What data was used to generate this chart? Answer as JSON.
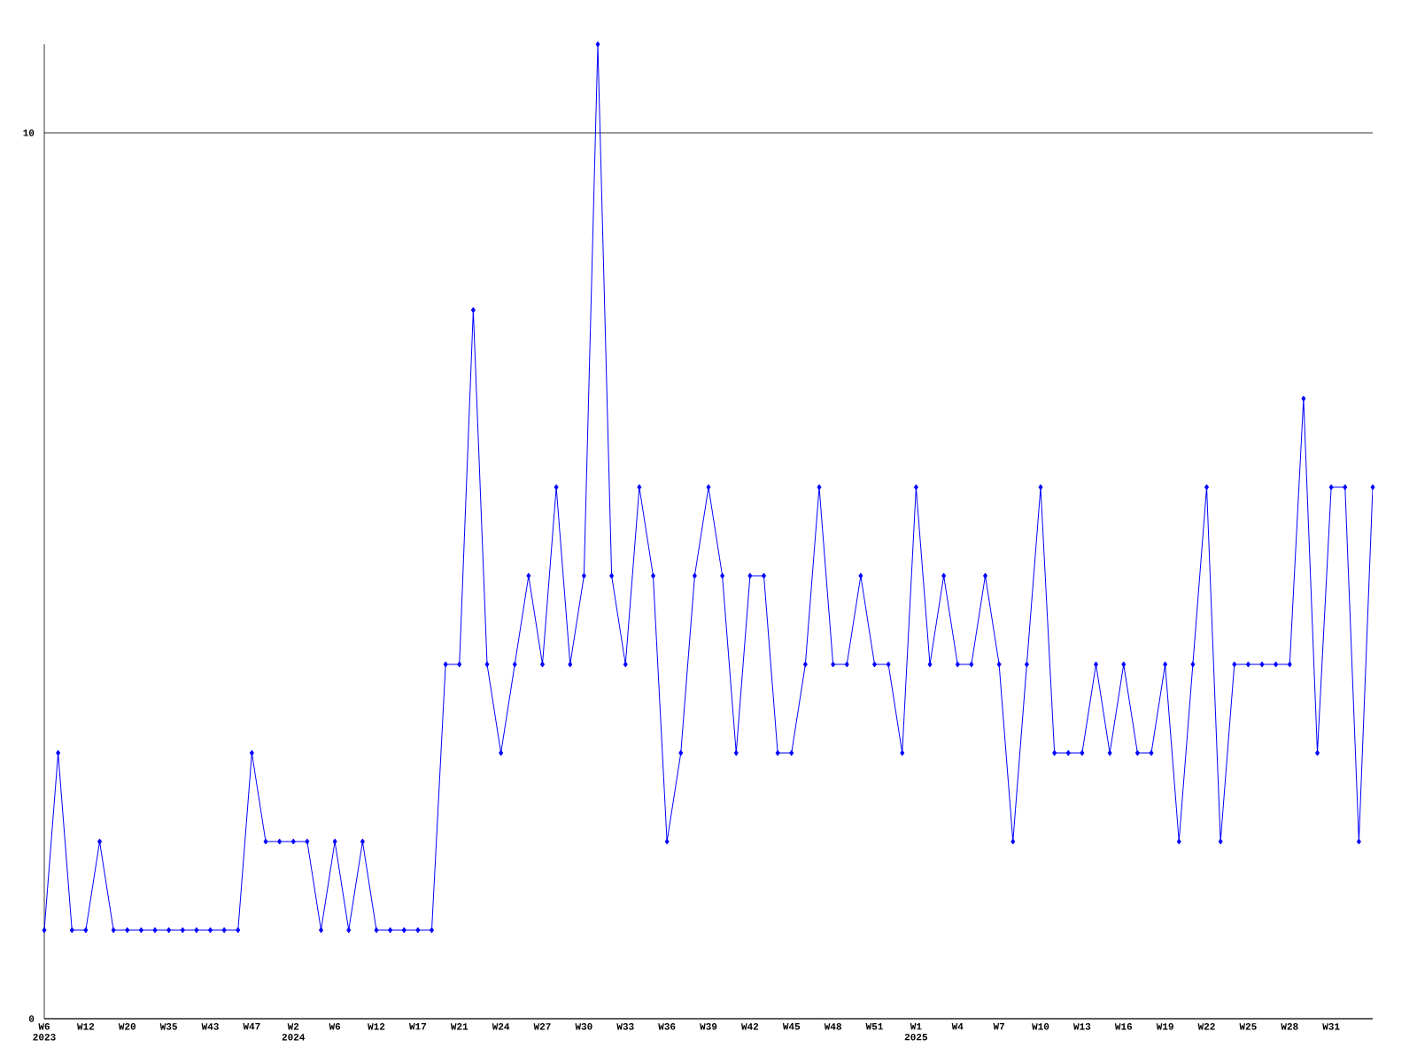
{
  "chart_data": {
    "type": "line",
    "categories": [
      "W6 2023",
      null,
      null,
      "W12",
      null,
      null,
      "W20",
      null,
      null,
      "W35",
      null,
      null,
      "W43",
      null,
      null,
      "W47",
      null,
      null,
      "W2 2024",
      null,
      null,
      "W6",
      null,
      null,
      "W12",
      null,
      null,
      "W17",
      null,
      null,
      "W21",
      null,
      null,
      "W24",
      null,
      null,
      "W27",
      null,
      null,
      "W30",
      null,
      null,
      "W33",
      null,
      null,
      "W36",
      null,
      null,
      "W39",
      null,
      null,
      "W42",
      null,
      null,
      "W45",
      null,
      null,
      "W48",
      null,
      null,
      "W51",
      null,
      null,
      "W1 2025",
      null,
      null,
      "W4",
      null,
      null,
      "W7",
      null,
      null,
      "W10",
      null,
      null,
      "W13",
      null,
      null,
      "W16",
      null,
      null,
      "W19",
      null,
      null,
      "W22",
      null,
      null,
      "W25",
      null,
      null,
      "W28",
      null,
      null,
      "W31",
      null,
      null,
      null
    ],
    "series": [
      {
        "color": "#0000ff",
        "values": [
          1,
          3,
          1,
          1,
          2,
          1,
          1,
          1,
          1,
          1,
          1,
          1,
          1,
          1,
          1,
          3,
          2,
          2,
          2,
          2,
          1,
          2,
          1,
          2,
          1,
          1,
          1,
          1,
          1,
          4,
          4,
          8,
          4,
          3,
          4,
          5,
          4,
          6,
          4,
          5,
          11,
          5,
          4,
          6,
          5,
          2,
          3,
          5,
          6,
          5,
          3,
          5,
          5,
          3,
          3,
          4,
          6,
          4,
          4,
          5,
          4,
          4,
          3,
          6,
          4,
          5,
          4,
          4,
          5,
          4,
          2,
          4,
          6,
          3,
          3,
          3,
          4,
          3,
          4,
          3,
          3,
          4,
          2,
          4,
          6,
          2,
          4,
          4,
          4,
          4,
          4,
          7,
          3,
          6,
          6,
          2,
          6
        ]
      }
    ],
    "ylim": [
      0,
      11
    ],
    "yticks": [
      0,
      10
    ],
    "grid": "y",
    "marker": "diamond",
    "line_style": "solid"
  }
}
